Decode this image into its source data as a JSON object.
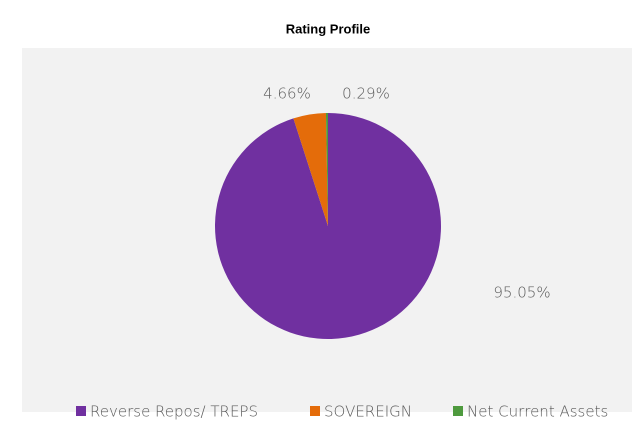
{
  "chart_data": {
    "type": "pie",
    "title": "Rating Profile",
    "categories": [
      "Reverse Repos/ TREPS",
      "SOVEREIGN",
      "Net Current Assets"
    ],
    "values": [
      95.05,
      4.66,
      0.29
    ],
    "value_labels": [
      "95.05%",
      "4.66%",
      "0.29%"
    ],
    "colors": [
      "#7030a0",
      "#e46c0a",
      "#4e9a3e"
    ],
    "legend": "bottom"
  }
}
